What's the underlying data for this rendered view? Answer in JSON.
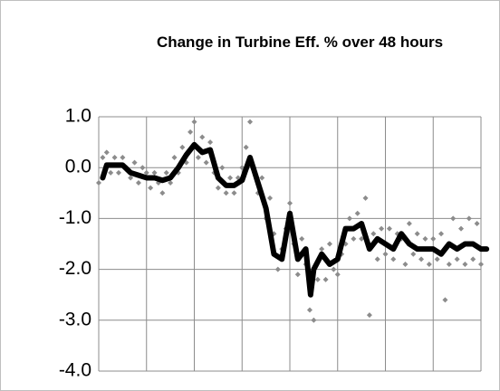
{
  "chart_data": {
    "type": "scatter",
    "title": "Change in Turbine Eff. % over 48 hours",
    "xlim": [
      0,
      48
    ],
    "xticks": [
      0,
      6,
      12,
      18,
      24,
      30,
      36,
      42,
      48
    ],
    "ylim": [
      -4,
      1
    ],
    "yticks": [
      {
        "value": 1,
        "label": "1.0"
      },
      {
        "value": 0,
        "label": "0.0"
      },
      {
        "value": -1,
        "label": "-1.0"
      },
      {
        "value": -2,
        "label": "-2.0"
      },
      {
        "value": -3,
        "label": "-3.0"
      },
      {
        "value": -4,
        "label": "-4.0"
      }
    ],
    "grid": true,
    "series": [
      {
        "mode": "markers",
        "color": "#8c8c8c",
        "x": [
          0,
          0.5,
          1,
          1.5,
          2,
          2.5,
          3,
          3.5,
          4,
          4.5,
          5,
          5.5,
          6,
          6.5,
          7,
          7.5,
          8,
          8.5,
          9,
          9.5,
          10,
          10.5,
          11,
          11.5,
          12,
          12.5,
          13,
          13.5,
          14,
          14.5,
          15,
          15.5,
          16,
          16.5,
          17,
          17.5,
          18,
          18.5,
          19,
          19.5,
          20,
          20.5,
          21,
          21.5,
          22,
          22.5,
          23,
          23.5,
          24,
          24.5,
          25,
          25.5,
          26,
          26.5,
          27,
          27.5,
          28,
          28.5,
          29,
          29.5,
          30,
          30.5,
          31,
          31.5,
          32,
          32.5,
          33,
          33.5,
          34,
          34.5,
          35,
          35.5,
          36,
          36.5,
          37,
          37.5,
          38,
          38.5,
          39,
          39.5,
          40,
          40.5,
          41,
          41.5,
          42,
          42.5,
          43,
          43.5,
          44,
          44.5,
          45,
          45.5,
          46,
          46.5,
          47,
          47.5,
          48
        ],
        "values": [
          -0.3,
          0.2,
          0.3,
          -0.1,
          0.2,
          -0.1,
          0.2,
          0.0,
          -0.2,
          0.1,
          -0.3,
          0.0,
          -0.1,
          -0.4,
          -0.1,
          -0.3,
          -0.5,
          -0.1,
          -0.3,
          0.2,
          -0.1,
          0.4,
          0.1,
          0.7,
          0.9,
          0.2,
          0.6,
          0.1,
          0.5,
          -0.1,
          -0.4,
          0.0,
          -0.5,
          -0.2,
          -0.5,
          -0.2,
          0.0,
          0.4,
          0.9,
          0.0,
          -0.5,
          -0.2,
          -1.0,
          -0.6,
          -1.3,
          -2.0,
          -1.6,
          -1.2,
          -0.7,
          -1.5,
          -2.1,
          -1.4,
          -1.9,
          -2.8,
          -3.0,
          -2.2,
          -1.6,
          -2.2,
          -1.5,
          -2.0,
          -2.1,
          -1.7,
          -1.5,
          -1.0,
          -1.4,
          -0.9,
          -1.4,
          -0.6,
          -2.9,
          -1.3,
          -1.8,
          -1.2,
          -1.7,
          -1.2,
          -1.8,
          -1.3,
          -1.4,
          -1.9,
          -1.1,
          -1.7,
          -1.3,
          -1.8,
          -1.4,
          -1.9,
          -1.4,
          -1.8,
          -1.3,
          -2.6,
          -1.9,
          -1.0,
          -1.8,
          -1.2,
          -1.9,
          -1.0,
          -1.8,
          -1.1,
          -1.9
        ]
      },
      {
        "mode": "line",
        "color": "#000000",
        "x": [
          0.5,
          1,
          2,
          3,
          4,
          5,
          6,
          7,
          8,
          9,
          10,
          11,
          12,
          13,
          14,
          15,
          16,
          17,
          18,
          19,
          20,
          21,
          22,
          23,
          24,
          25,
          26,
          26.6,
          27,
          28,
          29,
          30,
          31,
          32,
          33,
          34,
          35,
          36,
          37,
          38,
          39,
          40,
          41,
          42,
          43,
          44,
          45,
          46,
          47,
          48,
          48.7
        ],
        "values": [
          -0.2,
          0.05,
          0.05,
          0.05,
          -0.1,
          -0.15,
          -0.2,
          -0.2,
          -0.25,
          -0.2,
          0.0,
          0.25,
          0.45,
          0.3,
          0.35,
          -0.2,
          -0.35,
          -0.35,
          -0.25,
          0.2,
          -0.3,
          -0.8,
          -1.7,
          -1.8,
          -0.9,
          -1.8,
          -1.6,
          -2.5,
          -2.0,
          -1.7,
          -1.9,
          -1.8,
          -1.2,
          -1.2,
          -1.1,
          -1.6,
          -1.4,
          -1.5,
          -1.6,
          -1.3,
          -1.5,
          -1.6,
          -1.6,
          -1.6,
          -1.7,
          -1.5,
          -1.6,
          -1.5,
          -1.5,
          -1.6,
          -1.6
        ]
      }
    ]
  }
}
